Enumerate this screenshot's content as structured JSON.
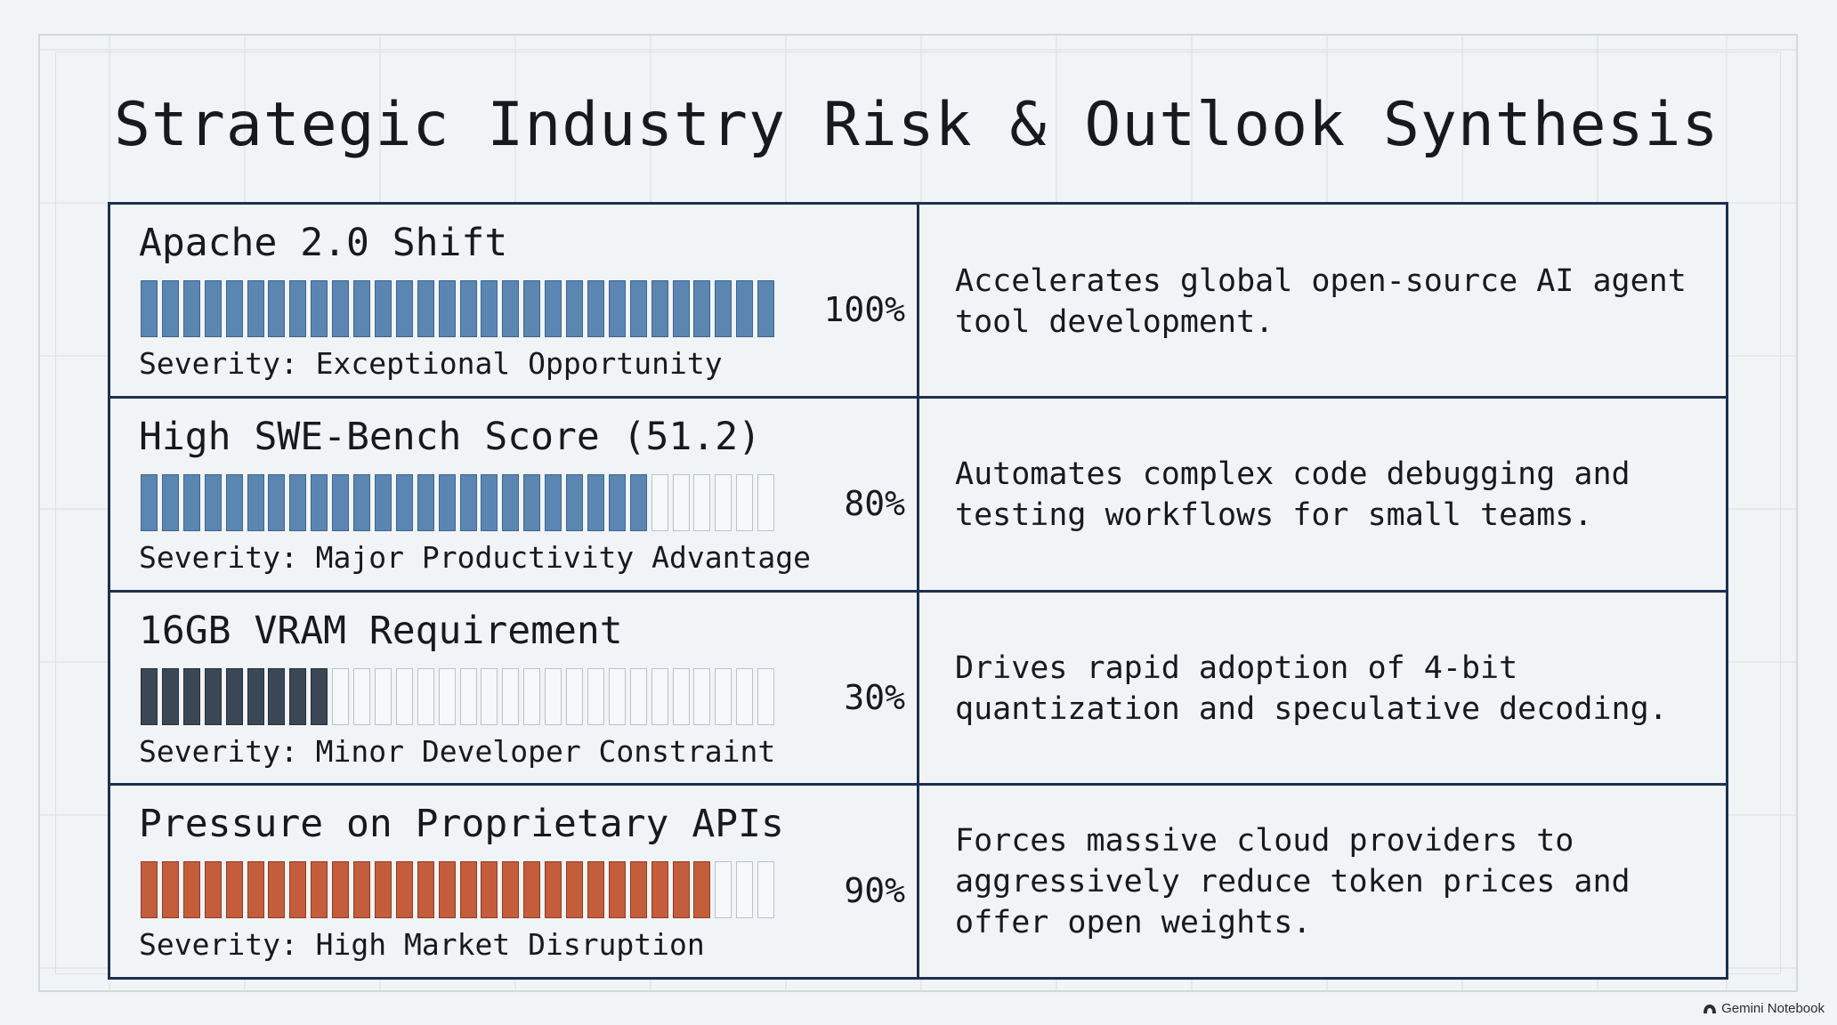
{
  "title": "Strategic Industry Risk & Outlook Synthesis",
  "watermark": "Gemini Notebook",
  "colors": {
    "background": "#f1f4f6",
    "border": "#1e3050",
    "empty_segment_border": "#b9c2cc"
  },
  "rows": [
    {
      "title": "Apache 2.0 Shift",
      "percent": 100,
      "percent_label": "100%",
      "severity": "Severity: Exceptional Opportunity",
      "description": "Accelerates global open-source AI agent\ntool development.",
      "bar_color": "#5b86b1",
      "bar_edge": "#3d6590"
    },
    {
      "title": "High SWE-Bench Score (51.2)",
      "percent": 80,
      "percent_label": "80%",
      "severity": "Severity: Major Productivity Advantage",
      "description": "Automates complex code debugging and\ntesting workflows for small teams.",
      "bar_color": "#5b86b1",
      "bar_edge": "#3d6590"
    },
    {
      "title": "16GB VRAM Requirement",
      "percent": 30,
      "percent_label": "30%",
      "severity": "Severity: Minor Developer Constraint",
      "description": "Drives rapid adoption of 4-bit\nquantization and speculative decoding.",
      "bar_color": "#3b4754",
      "bar_edge": "#252f3a"
    },
    {
      "title": "Pressure on Proprietary APIs",
      "percent": 90,
      "percent_label": "90%",
      "severity": "Severity: High Market Disruption",
      "description": "Forces massive cloud providers to\naggressively reduce token prices and\noffer open weights.",
      "bar_color": "#c45d3c",
      "bar_edge": "#8f3c22"
    }
  ]
}
